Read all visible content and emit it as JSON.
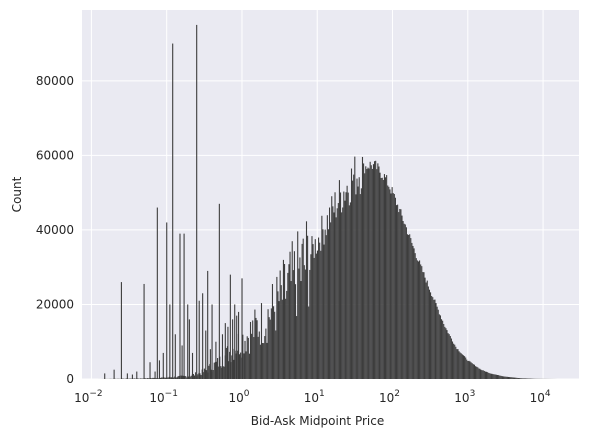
{
  "chart_data": {
    "type": "bar",
    "title": "",
    "xlabel": "Bid-Ask Midpoint Price",
    "ylabel": "Count",
    "x_scale": "log",
    "xlim": [
      0.0075,
      30000
    ],
    "ylim": [
      0,
      99000
    ],
    "grid": true,
    "legend": "none",
    "x_ticks": [
      {
        "value": 0.01,
        "base": "10",
        "exp": "−2"
      },
      {
        "value": 0.1,
        "base": "10",
        "exp": "−1"
      },
      {
        "value": 1,
        "base": "10",
        "exp": "0"
      },
      {
        "value": 10,
        "base": "10",
        "exp": "1"
      },
      {
        "value": 100,
        "base": "10",
        "exp": "2"
      },
      {
        "value": 1000,
        "base": "10",
        "exp": "3"
      },
      {
        "value": 10000,
        "base": "10",
        "exp": "4"
      }
    ],
    "y_ticks": [
      {
        "value": 0,
        "label": "0"
      },
      {
        "value": 20000,
        "label": "20000"
      },
      {
        "value": 40000,
        "label": "40000"
      },
      {
        "value": 60000,
        "label": "60000"
      },
      {
        "value": 80000,
        "label": "80000"
      }
    ],
    "spikes": [
      {
        "x": 0.015,
        "value": 1500
      },
      {
        "x": 0.02,
        "value": 2500
      },
      {
        "x": 0.025,
        "value": 26000
      },
      {
        "x": 0.03,
        "value": 1500
      },
      {
        "x": 0.035,
        "value": 1200
      },
      {
        "x": 0.04,
        "value": 2000
      },
      {
        "x": 0.05,
        "value": 25500
      },
      {
        "x": 0.06,
        "value": 4500
      },
      {
        "x": 0.07,
        "value": 2000
      },
      {
        "x": 0.075,
        "value": 46000
      },
      {
        "x": 0.08,
        "value": 5000
      },
      {
        "x": 0.09,
        "value": 7000
      },
      {
        "x": 0.1,
        "value": 42000
      },
      {
        "x": 0.11,
        "value": 20000
      },
      {
        "x": 0.12,
        "value": 90000
      },
      {
        "x": 0.13,
        "value": 12000
      },
      {
        "x": 0.15,
        "value": 39000
      },
      {
        "x": 0.16,
        "value": 9000
      },
      {
        "x": 0.17,
        "value": 39000
      },
      {
        "x": 0.19,
        "value": 20000
      },
      {
        "x": 0.2,
        "value": 16000
      },
      {
        "x": 0.22,
        "value": 7000
      },
      {
        "x": 0.25,
        "value": 95000
      },
      {
        "x": 0.27,
        "value": 21000
      },
      {
        "x": 0.3,
        "value": 23000
      },
      {
        "x": 0.33,
        "value": 13000
      },
      {
        "x": 0.35,
        "value": 29000
      },
      {
        "x": 0.38,
        "value": 8000
      },
      {
        "x": 0.4,
        "value": 20000
      },
      {
        "x": 0.45,
        "value": 10000
      },
      {
        "x": 0.5,
        "value": 47000
      },
      {
        "x": 0.55,
        "value": 12000
      },
      {
        "x": 0.6,
        "value": 15000
      },
      {
        "x": 0.65,
        "value": 14000
      },
      {
        "x": 0.7,
        "value": 28000
      },
      {
        "x": 0.75,
        "value": 16000
      },
      {
        "x": 0.8,
        "value": 20000
      },
      {
        "x": 0.85,
        "value": 17000
      },
      {
        "x": 0.9,
        "value": 18000
      },
      {
        "x": 1.0,
        "value": 27000
      }
    ],
    "smooth_profile": [
      {
        "x": 0.012,
        "value": 0
      },
      {
        "x": 0.05,
        "value": 150
      },
      {
        "x": 0.1,
        "value": 400
      },
      {
        "x": 0.2,
        "value": 800
      },
      {
        "x": 0.3,
        "value": 1800
      },
      {
        "x": 0.5,
        "value": 4500
      },
      {
        "x": 0.7,
        "value": 7500
      },
      {
        "x": 1.0,
        "value": 10500
      },
      {
        "x": 1.5,
        "value": 13500
      },
      {
        "x": 2,
        "value": 16000
      },
      {
        "x": 3,
        "value": 20500
      },
      {
        "x": 5,
        "value": 26500
      },
      {
        "x": 7,
        "value": 31000
      },
      {
        "x": 10,
        "value": 37000
      },
      {
        "x": 15,
        "value": 44000
      },
      {
        "x": 20,
        "value": 49000
      },
      {
        "x": 30,
        "value": 54000
      },
      {
        "x": 40,
        "value": 56500
      },
      {
        "x": 50,
        "value": 57500
      },
      {
        "x": 60,
        "value": 57000
      },
      {
        "x": 80,
        "value": 54000
      },
      {
        "x": 100,
        "value": 50000
      },
      {
        "x": 150,
        "value": 41000
      },
      {
        "x": 200,
        "value": 34000
      },
      {
        "x": 300,
        "value": 25000
      },
      {
        "x": 500,
        "value": 14000
      },
      {
        "x": 700,
        "value": 8500
      },
      {
        "x": 1000,
        "value": 5000
      },
      {
        "x": 1500,
        "value": 2500
      },
      {
        "x": 2000,
        "value": 1500
      },
      {
        "x": 3000,
        "value": 700
      },
      {
        "x": 5000,
        "value": 200
      },
      {
        "x": 8000,
        "value": 50
      },
      {
        "x": 16000,
        "value": 0
      }
    ],
    "bar_color": "#3d3d3d",
    "background_color": "#eaeaf2",
    "grid_color": "#ffffff"
  }
}
